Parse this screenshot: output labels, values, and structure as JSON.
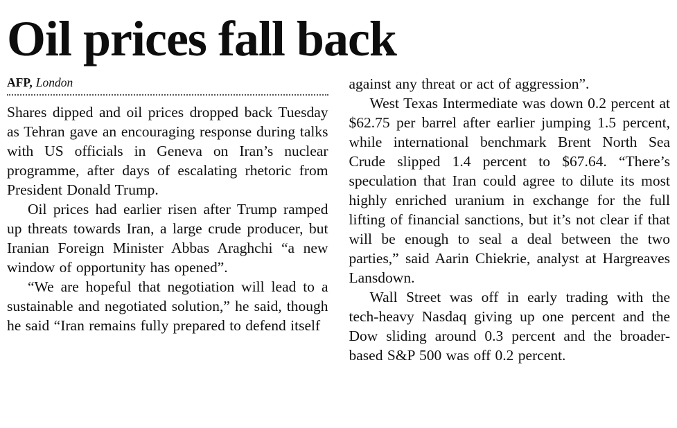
{
  "article": {
    "headline": "Oil prices fall back",
    "byline": {
      "agency": "AFP,",
      "location": "London"
    },
    "columns": {
      "left": [
        "Shares dipped and oil prices dropped back Tuesday as Tehran gave an encouraging response during talks with US officials in Geneva on Iran’s nuclear programme, after days of escalating rhetoric from President Donald Trump.",
        "Oil prices had earlier risen after Trump ramped up threats towards Iran, a large crude producer, but Iranian Foreign Minister Abbas Araghchi “a new window of opportunity has opened”.",
        "“We are hopeful that negotiation will lead to a sustainable and negotiated solution,” he said, though he said “Iran remains fully prepared to defend itself"
      ],
      "right": [
        "against any threat or act of aggression”.",
        "West Texas Intermediate was down 0.2 percent at $62.75 per barrel after earlier jumping 1.5 percent, while international benchmark Brent North Sea Crude slipped 1.4 percent to $67.64. “There’s speculation that Iran could agree to dilute its most highly enriched uranium in exchange for the full lifting of financial sanctions, but it’s not clear if that will be enough to seal a deal between the two parties,” said Aarin Chiekrie, analyst at Hargreaves Lansdown.",
        "Wall Street was off in early trading with the tech-heavy Nasdaq giving up one percent and the Dow sliding around 0.3 percent and the broader-based S&P 500 was off 0.2 percent."
      ]
    }
  }
}
